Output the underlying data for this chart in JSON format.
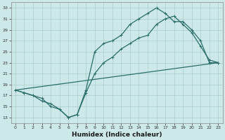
{
  "title": "",
  "xlabel": "Humidex (Indice chaleur)",
  "ylabel": "",
  "bg_color": "#cce8e8",
  "line_color": "#2a6e6a",
  "grid_color": "#aacccc",
  "xlim": [
    -0.5,
    23.5
  ],
  "ylim": [
    12,
    34
  ],
  "xticks": [
    0,
    1,
    2,
    3,
    4,
    5,
    6,
    7,
    8,
    9,
    10,
    11,
    12,
    13,
    14,
    15,
    16,
    17,
    18,
    19,
    20,
    21,
    22,
    23
  ],
  "yticks": [
    13,
    15,
    17,
    19,
    21,
    23,
    25,
    27,
    29,
    31,
    33
  ],
  "line1_x": [
    0,
    1,
    2,
    3,
    4,
    5,
    6,
    7,
    8,
    9,
    10,
    11,
    12,
    13,
    14,
    15,
    16,
    17,
    18,
    19,
    20,
    21,
    22,
    23
  ],
  "line1_y": [
    18.0,
    17.5,
    17.0,
    16.0,
    15.5,
    14.5,
    13.0,
    13.5,
    17.5,
    21.0,
    23.0,
    24.0,
    25.5,
    26.5,
    27.5,
    28.0,
    30.0,
    31.0,
    31.5,
    30.0,
    28.5,
    26.0,
    23.5,
    23.0
  ],
  "line2_x": [
    0,
    1,
    2,
    3,
    4,
    5,
    6,
    7,
    8,
    9,
    10,
    11,
    12,
    13,
    14,
    15,
    16,
    17,
    18,
    19,
    20,
    21,
    22,
    23
  ],
  "line2_y": [
    18.0,
    17.5,
    17.0,
    16.5,
    15.0,
    14.5,
    13.0,
    13.5,
    18.0,
    25.0,
    26.5,
    27.0,
    28.0,
    30.0,
    31.0,
    32.0,
    33.0,
    32.0,
    30.5,
    30.5,
    29.0,
    27.0,
    23.0,
    23.0
  ],
  "line3_x": [
    0,
    23
  ],
  "line3_y": [
    18.0,
    23.0
  ],
  "figsize": [
    3.2,
    2.0
  ],
  "dpi": 100,
  "tick_fontsize": 4.5,
  "xlabel_fontsize": 6.5,
  "marker_size": 2.5,
  "linewidth": 0.9
}
